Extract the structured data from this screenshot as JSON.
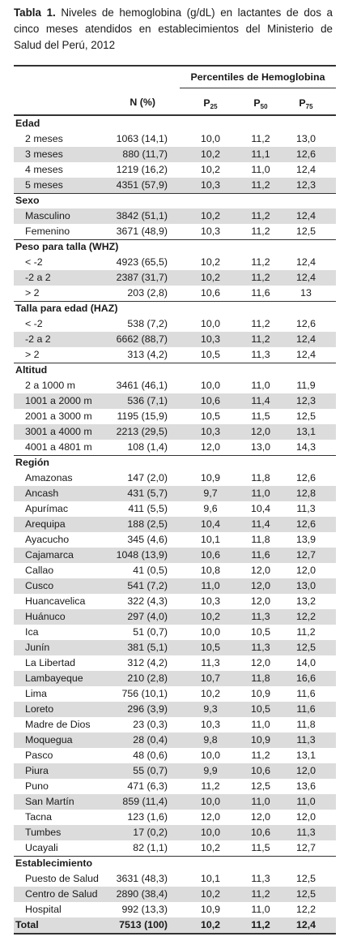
{
  "caption": {
    "label": "Tabla 1.",
    "text": "Niveles de hemoglobina (g/dL) en lactantes de dos a cinco meses atendidos en establecimientos del Ministerio de Salud del Perú, 2012"
  },
  "table": {
    "group_header": "Percentiles de Hemoglobina",
    "n_header": "N (%)",
    "percentile_headers": [
      {
        "label": "P",
        "sub": "25"
      },
      {
        "label": "P",
        "sub": "50"
      },
      {
        "label": "P",
        "sub": "75"
      }
    ],
    "sections": [
      {
        "title": "Edad",
        "rows": [
          [
            "2 meses",
            "1063 (14,1)",
            "10,0",
            "11,2",
            "13,0"
          ],
          [
            "3 meses",
            "880 (11,7)",
            "10,2",
            "11,1",
            "12,6"
          ],
          [
            "4 meses",
            "1219 (16,2)",
            "10,2",
            "11,0",
            "12,4"
          ],
          [
            "5 meses",
            "4351 (57,9)",
            "10,3",
            "11,2",
            "12,3"
          ]
        ]
      },
      {
        "title": "Sexo",
        "rows": [
          [
            "Masculino",
            "3842 (51,1)",
            "10,2",
            "11,2",
            "12,4"
          ],
          [
            "Femenino",
            "3671 (48,9)",
            "10,3",
            "11,2",
            "12,5"
          ]
        ]
      },
      {
        "title": "Peso para talla (WHZ)",
        "rows": [
          [
            "< -2",
            "4923 (65,5)",
            "10,2",
            "11,2",
            "12,4"
          ],
          [
            "-2 a 2",
            "2387 (31,7)",
            "10,2",
            "11,2",
            "12,4"
          ],
          [
            "> 2",
            "203 (2,8)",
            "10,6",
            "11,6",
            "13"
          ]
        ]
      },
      {
        "title": "Talla para edad (HAZ)",
        "rows": [
          [
            "< -2",
            "538 (7,2)",
            "10,0",
            "11,2",
            "12,6"
          ],
          [
            "-2 a 2",
            "6662 (88,7)",
            "10,3",
            "11,2",
            "12,4"
          ],
          [
            "> 2",
            "313 (4,2)",
            "10,5",
            "11,3",
            "12,4"
          ]
        ]
      },
      {
        "title": "Altitud",
        "rows": [
          [
            "2 a 1000 m",
            "3461 (46,1)",
            "10,0",
            "11,0",
            "11,9"
          ],
          [
            "1001 a 2000 m",
            "536 (7,1)",
            "10,6",
            "11,4",
            "12,3"
          ],
          [
            "2001 a 3000 m",
            "1195 (15,9)",
            "10,5",
            "11,5",
            "12,5"
          ],
          [
            "3001 a 4000 m",
            "2213 (29,5)",
            "10,3",
            "12,0",
            "13,1"
          ],
          [
            "4001 a 4801 m",
            "108 (1,4)",
            "12,0",
            "13,0",
            "14,3"
          ]
        ]
      },
      {
        "title": "Región",
        "rows": [
          [
            "Amazonas",
            "147 (2,0)",
            "10,9",
            "11,8",
            "12,6"
          ],
          [
            "Ancash",
            "431 (5,7)",
            "9,7",
            "11,0",
            "12,8"
          ],
          [
            "Apurímac",
            "411 (5,5)",
            "9,6",
            "10,4",
            "11,3"
          ],
          [
            "Arequipa",
            "188 (2,5)",
            "10,4",
            "11,4",
            "12,6"
          ],
          [
            "Ayacucho",
            "345 (4,6)",
            "10,1",
            "11,8",
            "13,9"
          ],
          [
            "Cajamarca",
            "1048 (13,9)",
            "10,6",
            "11,6",
            "12,7"
          ],
          [
            "Callao",
            "41 (0,5)",
            "10,8",
            "12,0",
            "12,0"
          ],
          [
            "Cusco",
            "541 (7,2)",
            "11,0",
            "12,0",
            "13,0"
          ],
          [
            "Huancavelica",
            "322 (4,3)",
            "10,3",
            "12,0",
            "13,2"
          ],
          [
            "Huánuco",
            "297 (4,0)",
            "10,2",
            "11,3",
            "12,2"
          ],
          [
            "Ica",
            "51 (0,7)",
            "10,0",
            "10,5",
            "11,2"
          ],
          [
            "Junín",
            "381 (5,1)",
            "10,5",
            "11,3",
            "12,5"
          ],
          [
            "La Libertad",
            "312 (4,2)",
            "11,3",
            "12,0",
            "14,0"
          ],
          [
            "Lambayeque",
            "210 (2,8)",
            "10,7",
            "11,8",
            "16,6"
          ],
          [
            "Lima",
            "756 (10,1)",
            "10,2",
            "10,9",
            "11,6"
          ],
          [
            "Loreto",
            "296 (3,9)",
            "9,3",
            "10,5",
            "11,6"
          ],
          [
            "Madre de Dios",
            "23 (0,3)",
            "10,3",
            "11,0",
            "11,8"
          ],
          [
            "Moquegua",
            "28 (0,4)",
            "9,8",
            "10,9",
            "11,3"
          ],
          [
            "Pasco",
            "48 (0,6)",
            "10,0",
            "11,2",
            "13,1"
          ],
          [
            "Piura",
            "55 (0,7)",
            "9,9",
            "10,6",
            "12,0"
          ],
          [
            "Puno",
            "471 (6,3)",
            "11,2",
            "12,5",
            "13,6"
          ],
          [
            "San Martín",
            "859 (11,4)",
            "10,0",
            "11,0",
            "11,0"
          ],
          [
            "Tacna",
            "123 (1,6)",
            "12,0",
            "12,0",
            "12,0"
          ],
          [
            "Tumbes",
            "17 (0,2)",
            "10,0",
            "10,6",
            "11,3"
          ],
          [
            "Ucayali",
            "82 (1,1)",
            "10,2",
            "11,5",
            "12,7"
          ]
        ]
      },
      {
        "title": "Establecimiento",
        "rows": [
          [
            "Puesto de Salud",
            "3631 (48,3)",
            "10,1",
            "11,3",
            "12,5"
          ],
          [
            "Centro de Salud",
            "2890 (38,4)",
            "10,2",
            "11,2",
            "12,5"
          ],
          [
            "Hospital",
            "992 (13,3)",
            "10,9",
            "11,0",
            "12,2"
          ]
        ]
      }
    ],
    "total": [
      "Total",
      "7513 (100)",
      "10,2",
      "11,2",
      "12,4"
    ]
  }
}
